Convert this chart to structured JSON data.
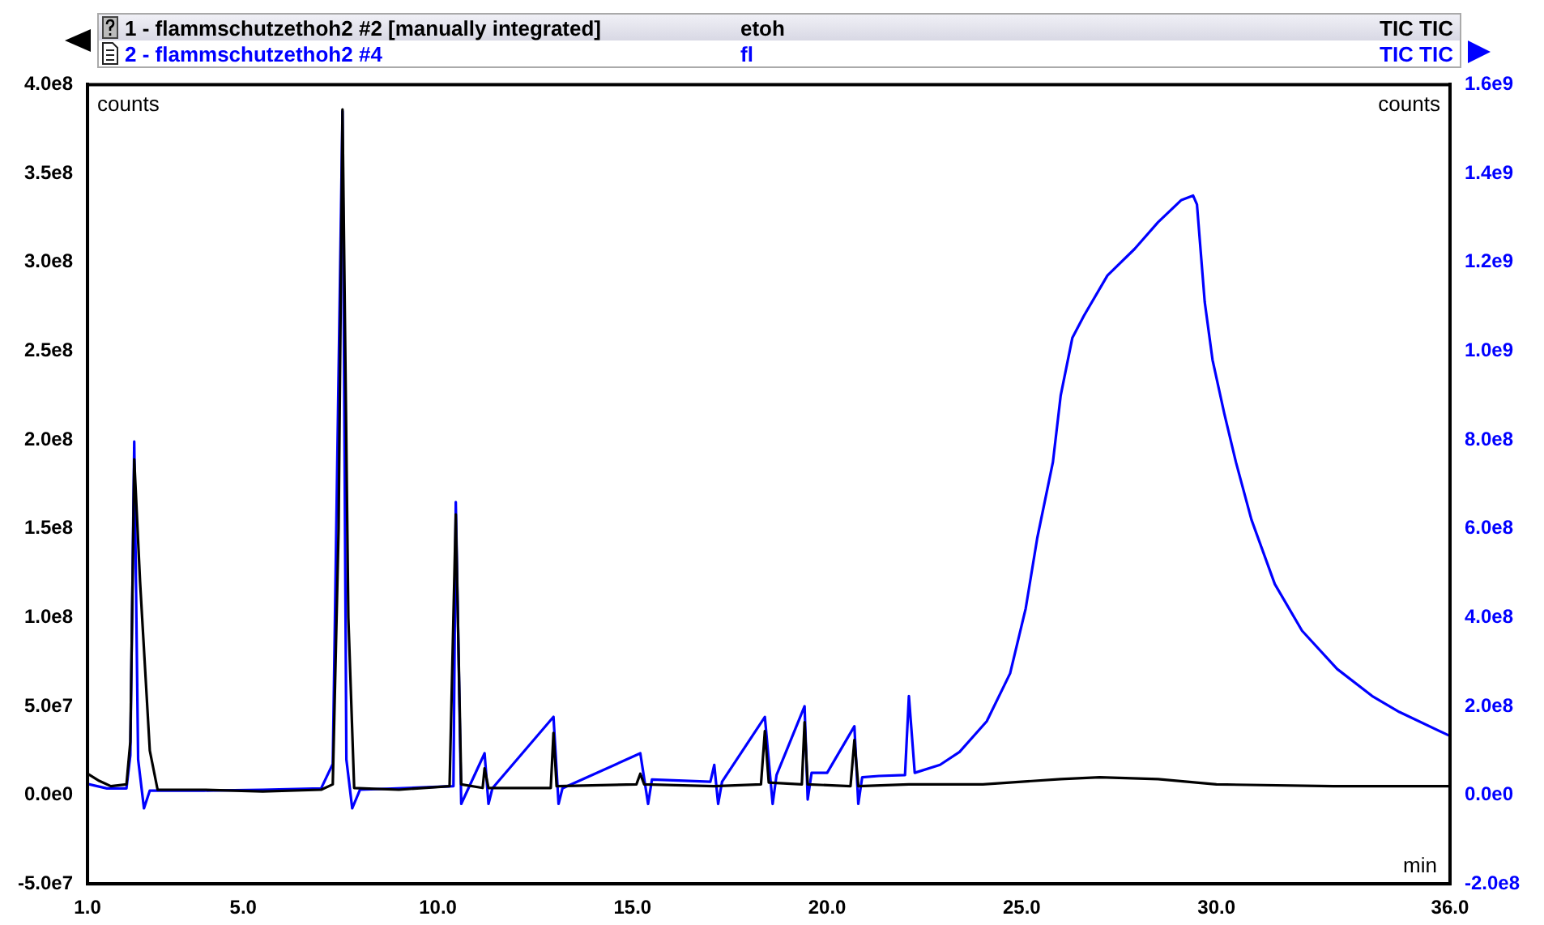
{
  "chart_data": {
    "type": "line",
    "xlabel": "min",
    "ylabel": "counts",
    "y2label": "counts",
    "annotations": [
      "etoh",
      "TIC TIC",
      "fl",
      "TIC TIC"
    ],
    "legend": "top",
    "marker": "none",
    "line_style": "solid",
    "grid": false,
    "xlim": [
      1,
      36
    ],
    "xticks": [
      {
        "value": 1,
        "label": "1.0"
      },
      {
        "value": 5,
        "label": "5.0"
      },
      {
        "value": 10,
        "label": "10.0"
      },
      {
        "value": 15,
        "label": "15.0"
      },
      {
        "value": 20,
        "label": "20.0"
      },
      {
        "value": 25,
        "label": "25.0"
      },
      {
        "value": 30,
        "label": "30.0"
      },
      {
        "value": 36,
        "label": "36.0"
      }
    ],
    "ylim": [
      -50000000,
      400000000
    ],
    "yticks": [
      {
        "value": -50000000,
        "label": "-5.0e7"
      },
      {
        "value": 0,
        "label": "0.0e0"
      },
      {
        "value": 50000000,
        "label": "5.0e7"
      },
      {
        "value": 100000000,
        "label": "1.0e8"
      },
      {
        "value": 150000000,
        "label": "1.5e8"
      },
      {
        "value": 200000000,
        "label": "2.0e8"
      },
      {
        "value": 250000000,
        "label": "2.5e8"
      },
      {
        "value": 300000000,
        "label": "3.0e8"
      },
      {
        "value": 350000000,
        "label": "3.5e8"
      },
      {
        "value": 400000000,
        "label": "4.0e8"
      }
    ],
    "y2lim": [
      -200000000,
      1600000000
    ],
    "y2ticks": [
      {
        "value": -200000000,
        "label": "-2.0e8"
      },
      {
        "value": 0,
        "label": "0.0e0"
      },
      {
        "value": 200000000,
        "label": "2.0e8"
      },
      {
        "value": 400000000,
        "label": "4.0e8"
      },
      {
        "value": 600000000,
        "label": "6.0e8"
      },
      {
        "value": 800000000,
        "label": "8.0e8"
      },
      {
        "value": 1000000000,
        "label": "1.0e9"
      },
      {
        "value": 1200000000,
        "label": "1.2e9"
      },
      {
        "value": 1400000000,
        "label": "1.4e9"
      },
      {
        "value": 1600000000,
        "label": "1.6e9"
      }
    ],
    "series": [
      {
        "name": "1 - flammschutzethoh2 #2 [manually integrated]",
        "color": "#000000",
        "x": [
          1.0,
          1.3,
          1.6,
          2.0,
          2.1,
          2.2,
          2.35,
          2.6,
          2.8,
          4,
          5.5,
          7.0,
          7.3,
          7.45,
          7.55,
          7.7,
          7.85,
          9,
          10.3,
          10.46,
          10.6,
          11.15,
          11.2,
          11.3,
          12.9,
          12.97,
          13.05,
          15.1,
          15.2,
          15.3,
          17.1,
          18.3,
          18.4,
          18.5,
          19.35,
          19.42,
          19.5,
          20.6,
          20.7,
          20.8,
          22.1,
          24,
          26,
          27,
          28.5,
          30,
          33,
          36
        ],
        "values": [
          12000000,
          8000000,
          5000000,
          6000000,
          30000000,
          189000000,
          120000000,
          25000000,
          3000000,
          3000000,
          2000000,
          3000000,
          6000000,
          150000000,
          386000000,
          100000000,
          4000000,
          3000000,
          5000000,
          158000000,
          6000000,
          4000000,
          15000000,
          4000000,
          4000000,
          35000000,
          5000000,
          6000000,
          12000000,
          6000000,
          5000000,
          6000000,
          36000000,
          7000000,
          6000000,
          41000000,
          6000000,
          5000000,
          31000000,
          5000000,
          6000000,
          6000000,
          9000000,
          10000000,
          9000000,
          6000000,
          5000000,
          5000000
        ]
      },
      {
        "name": "2 - flammschutzethoh2 #4",
        "color": "#0000ff",
        "axis": "y2",
        "x": [
          1.0,
          1.5,
          2.0,
          2.1,
          2.2,
          2.3,
          2.45,
          2.6,
          4,
          5.5,
          7.0,
          7.3,
          7.55,
          7.65,
          7.8,
          8,
          10.4,
          10.46,
          10.6,
          11.2,
          11.3,
          11.4,
          12.97,
          13.1,
          13.2,
          15.2,
          15.4,
          15.5,
          17.0,
          17.1,
          17.2,
          17.3,
          18.4,
          18.6,
          18.7,
          19.42,
          19.5,
          19.6,
          20.0,
          20.7,
          20.8,
          20.9,
          21.33,
          22.0,
          22.1,
          22.25,
          22.9,
          23.4,
          24.1,
          24.7,
          25.1,
          25.4,
          25.8,
          26.0,
          26.3,
          26.6,
          27.2,
          27.9,
          28.5,
          29.1,
          29.4,
          29.5,
          29.7,
          29.9,
          30.2,
          30.5,
          30.9,
          31.5,
          32.2,
          33.1,
          34.0,
          34.7,
          36.0
        ],
        "values": [
          25000000,
          15000000,
          15000000,
          90000000,
          796000000,
          80000000,
          -30000000,
          10000000,
          10000000,
          12000000,
          15000000,
          70000000,
          1540000000,
          80000000,
          -30000000,
          12000000,
          20000000,
          660000000,
          -20000000,
          94000000,
          -20000000,
          15000000,
          176000000,
          -20000000,
          15000000,
          94000000,
          -20000000,
          35000000,
          30000000,
          68000000,
          -20000000,
          30000000,
          176000000,
          -20000000,
          45000000,
          200000000,
          -10000000,
          50000000,
          50000000,
          155000000,
          -20000000,
          40000000,
          43000000,
          45000000,
          223000000,
          50000000,
          68000000,
          97000000,
          166000000,
          274000000,
          420000000,
          580000000,
          750000000,
          900000000,
          1030000000,
          1080000000,
          1170000000,
          1230000000,
          1290000000,
          1340000000,
          1350000000,
          1330000000,
          1110000000,
          980000000,
          860000000,
          750000000,
          620000000,
          475000000,
          370000000,
          284000000,
          223000000,
          187000000,
          133000000
        ]
      }
    ]
  }
}
